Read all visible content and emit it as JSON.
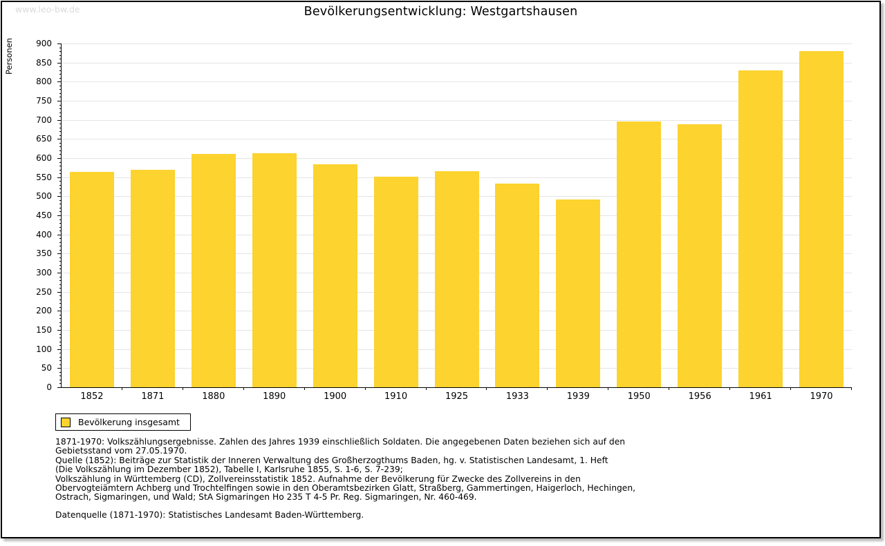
{
  "watermark": "www.leo-bw.de",
  "title": "Bevölkerungsentwicklung: Westgartshausen",
  "chart_data": {
    "type": "bar",
    "title": "Bevölkerungsentwicklung: Westgartshausen",
    "xlabel": "",
    "ylabel": "Personen",
    "ylim": [
      0,
      900
    ],
    "ytick_step": 50,
    "yminor_step": 10,
    "grid": true,
    "legend_position": "bottom-left",
    "categories": [
      "1852",
      "1871",
      "1880",
      "1890",
      "1900",
      "1910",
      "1925",
      "1933",
      "1939",
      "1950",
      "1956",
      "1961",
      "1970"
    ],
    "series": [
      {
        "name": "Bevölkerung insgesamt",
        "values": [
          563,
          570,
          610,
          613,
          583,
          552,
          565,
          533,
          491,
          695,
          689,
          829,
          881
        ]
      }
    ],
    "bar_color": "#FCD32F"
  },
  "legend": {
    "label": "Bevölkerung insgesamt"
  },
  "footnotes": {
    "lines": [
      "1871-1970: Volkszählungsergebnisse. Zahlen des Jahres 1939 einschließlich Soldaten. Die angegebenen Daten beziehen sich auf den",
      "Gebietsstand vom 27.05.1970.",
      "Quelle (1852): Beiträge zur Statistik der Inneren Verwaltung des Großherzogthums Baden, hg. v. Statistischen Landesamt, 1. Heft",
      "(Die Volkszählung im Dezember 1852), Tabelle I, Karlsruhe 1855, S. 1-6, S. 7-239;",
      "Volkszählung in Württemberg (CD), Zollvereinsstatistik 1852. Aufnahme der Bevölkerung für Zwecke des Zollvereins in den",
      "Obervogteiämtern Achberg und Trochtelfingen sowie in den Oberamtsbezirken Glatt, Straßberg, Gammertingen, Haigerloch, Hechingen,",
      "Ostrach, Sigmaringen, und Wald; StA Sigmaringen Ho 235 T 4-5 Pr. Reg. Sigmaringen, Nr. 460-469."
    ],
    "source_line": "Datenquelle (1871-1970): Statistisches Landesamt Baden-Württemberg."
  },
  "colors": {
    "bar": "#FCD32F",
    "grid": "#E4E4E4",
    "axis": "#000000",
    "text": "#000000",
    "watermark": "#DADADA",
    "frame_shadow": "#BBBBBB",
    "background": "#FFFFFF"
  }
}
